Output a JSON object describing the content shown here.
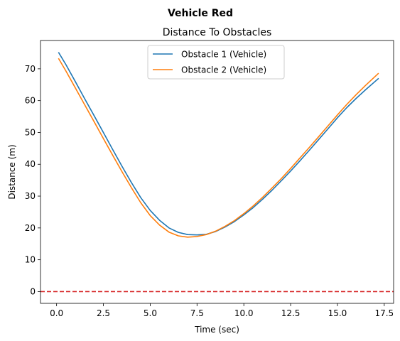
{
  "figure": {
    "suptitle": "Vehicle Red"
  },
  "chart_data": {
    "type": "line",
    "title": "Distance To Obstacles",
    "xlabel": "Time (sec)",
    "ylabel": "Distance (m)",
    "xlim": [
      -0.86,
      18.0
    ],
    "ylim": [
      -3.7,
      78.9
    ],
    "xticks": [
      0.0,
      2.5,
      5.0,
      7.5,
      10.0,
      12.5,
      15.0,
      17.5
    ],
    "xtick_labels": [
      "0.0",
      "2.5",
      "5.0",
      "7.5",
      "10.0",
      "12.5",
      "15.0",
      "17.5"
    ],
    "yticks": [
      0,
      10,
      20,
      30,
      40,
      50,
      60,
      70
    ],
    "ytick_labels": [
      "0",
      "10",
      "20",
      "30",
      "40",
      "50",
      "60",
      "70"
    ],
    "grid": false,
    "legend_position": "upper-center",
    "series": [
      {
        "name": "Obstacle 1 (Vehicle)",
        "color": "#1f77b4",
        "x": [
          0.1,
          0.5,
          1.0,
          1.5,
          2.0,
          2.5,
          3.0,
          3.5,
          4.0,
          4.5,
          5.0,
          5.5,
          6.0,
          6.5,
          7.0,
          7.5,
          8.0,
          8.5,
          9.0,
          9.5,
          10.0,
          10.5,
          11.0,
          11.5,
          12.0,
          12.5,
          13.0,
          13.5,
          14.0,
          14.5,
          15.0,
          15.5,
          16.0,
          16.5,
          17.2
        ],
        "y": [
          75.2,
          71.3,
          66.0,
          60.6,
          55.3,
          50.0,
          44.6,
          39.3,
          34.2,
          29.5,
          25.5,
          22.4,
          20.0,
          18.6,
          17.9,
          17.8,
          18.0,
          18.9,
          20.3,
          22.0,
          24.1,
          26.4,
          29.0,
          31.8,
          34.8,
          37.9,
          41.1,
          44.4,
          47.8,
          51.2,
          54.6,
          57.8,
          60.7,
          63.4,
          67.0
        ]
      },
      {
        "name": "Obstacle 2 (Vehicle)",
        "color": "#ff7f0e",
        "x": [
          0.1,
          0.5,
          1.0,
          1.5,
          2.0,
          2.5,
          3.0,
          3.5,
          4.0,
          4.5,
          5.0,
          5.5,
          6.0,
          6.5,
          7.0,
          7.5,
          8.0,
          8.5,
          9.0,
          9.5,
          10.0,
          10.5,
          11.0,
          11.5,
          12.0,
          12.5,
          13.0,
          13.5,
          14.0,
          14.5,
          15.0,
          15.5,
          16.0,
          16.5,
          17.2
        ],
        "y": [
          73.3,
          69.3,
          64.0,
          58.7,
          53.4,
          48.1,
          42.8,
          37.6,
          32.6,
          27.9,
          23.9,
          20.9,
          18.7,
          17.5,
          17.1,
          17.3,
          17.9,
          19.0,
          20.5,
          22.3,
          24.5,
          26.9,
          29.6,
          32.5,
          35.5,
          38.7,
          42.0,
          45.3,
          48.7,
          52.1,
          55.5,
          58.8,
          61.9,
          64.8,
          68.6
        ]
      }
    ],
    "reference_line": {
      "y": 0,
      "color": "#d62728",
      "style": "dashed"
    }
  }
}
